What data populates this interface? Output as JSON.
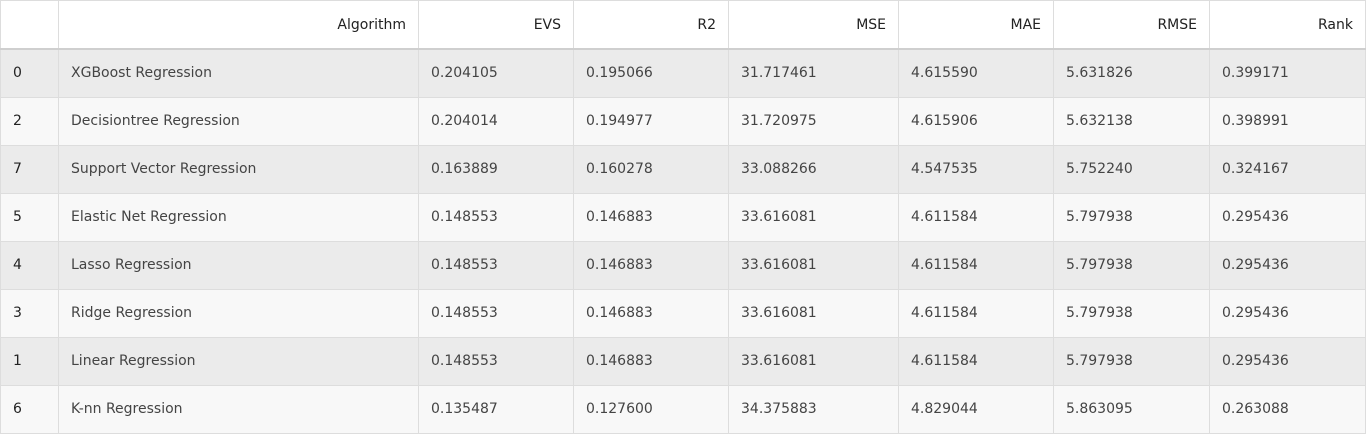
{
  "table": {
    "columns": [
      "",
      "Algorithm",
      "EVS",
      "R2",
      "MSE",
      "MAE",
      "RMSE",
      "Rank"
    ],
    "rows": [
      {
        "index": "0",
        "cells": [
          "XGBoost Regression",
          "0.204105",
          "0.195066",
          "31.717461",
          "4.615590",
          "5.631826",
          "0.399171"
        ]
      },
      {
        "index": "2",
        "cells": [
          "Decisiontree Regression",
          "0.204014",
          "0.194977",
          "31.720975",
          "4.615906",
          "5.632138",
          "0.398991"
        ]
      },
      {
        "index": "7",
        "cells": [
          "Support Vector Regression",
          "0.163889",
          "0.160278",
          "33.088266",
          "4.547535",
          "5.752240",
          "0.324167"
        ]
      },
      {
        "index": "5",
        "cells": [
          "Elastic Net Regression",
          "0.148553",
          "0.146883",
          "33.616081",
          "4.611584",
          "5.797938",
          "0.295436"
        ]
      },
      {
        "index": "4",
        "cells": [
          "Lasso Regression",
          "0.148553",
          "0.146883",
          "33.616081",
          "4.611584",
          "5.797938",
          "0.295436"
        ]
      },
      {
        "index": "3",
        "cells": [
          "Ridge Regression",
          "0.148553",
          "0.146883",
          "33.616081",
          "4.611584",
          "5.797938",
          "0.295436"
        ]
      },
      {
        "index": "1",
        "cells": [
          "Linear Regression",
          "0.148553",
          "0.146883",
          "33.616081",
          "4.611584",
          "5.797938",
          "0.295436"
        ]
      },
      {
        "index": "6",
        "cells": [
          "K-nn Regression",
          "0.135487",
          "0.127600",
          "34.375883",
          "4.829044",
          "5.863095",
          "0.263088"
        ]
      }
    ]
  },
  "colors": {
    "row_odd": "#ebebeb",
    "row_even": "#f8f8f8",
    "border": "#dddddd"
  }
}
